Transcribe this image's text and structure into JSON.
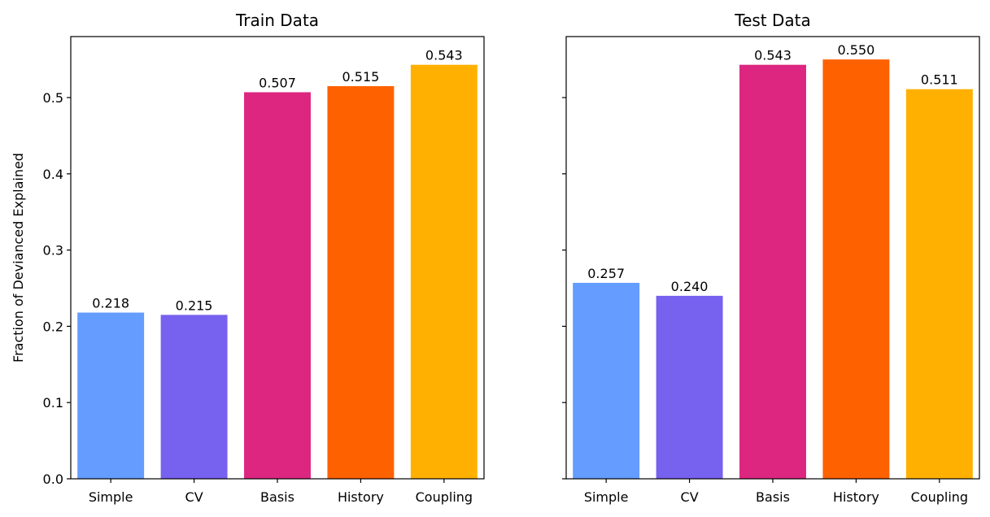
{
  "chart_data": [
    {
      "type": "bar",
      "title": "Train Data",
      "ylabel": "Fraction of Devianced Explained",
      "categories": [
        "Simple",
        "CV",
        "Basis",
        "History",
        "Coupling"
      ],
      "values": [
        0.218,
        0.215,
        0.507,
        0.515,
        0.543
      ],
      "bar_labels": [
        "0.218",
        "0.215",
        "0.507",
        "0.515",
        "0.543"
      ],
      "colors": [
        "#649cff",
        "#7761ef",
        "#dc267f",
        "#fe6100",
        "#ffb000"
      ],
      "ylim": [
        0,
        0.58
      ],
      "yticks": [
        "0.0",
        "0.1",
        "0.2",
        "0.3",
        "0.4",
        "0.5"
      ],
      "show_ytick_labels": true,
      "grid": false
    },
    {
      "type": "bar",
      "title": "Test Data",
      "ylabel": "",
      "categories": [
        "Simple",
        "CV",
        "Basis",
        "History",
        "Coupling"
      ],
      "values": [
        0.257,
        0.24,
        0.543,
        0.55,
        0.511
      ],
      "bar_labels": [
        "0.257",
        "0.240",
        "0.543",
        "0.550",
        "0.511"
      ],
      "colors": [
        "#649cff",
        "#7761ef",
        "#dc267f",
        "#fe6100",
        "#ffb000"
      ],
      "ylim": [
        0,
        0.58
      ],
      "yticks": [
        "0.0",
        "0.1",
        "0.2",
        "0.3",
        "0.4",
        "0.5"
      ],
      "show_ytick_labels": false,
      "grid": false
    }
  ]
}
